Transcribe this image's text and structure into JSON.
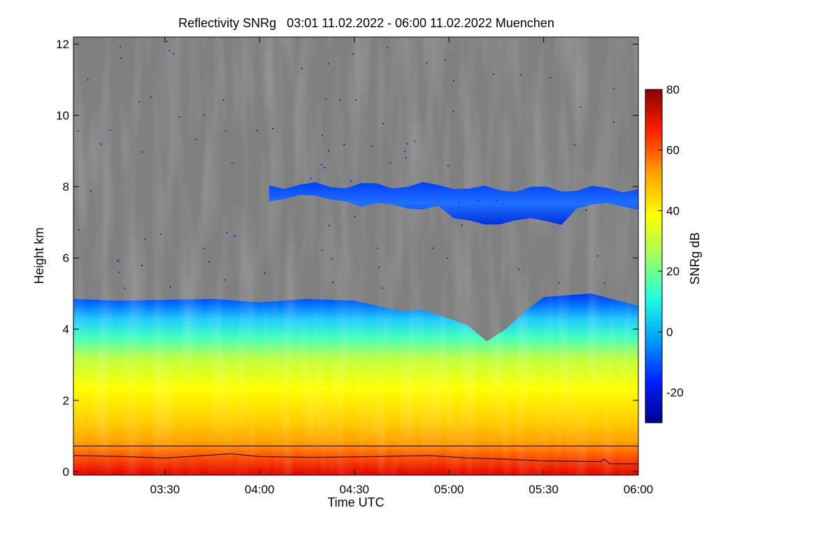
{
  "chart_data": {
    "type": "heatmap",
    "title": "Reflectivity SNRg   03:01 11.02.2022 - 06:00 11.02.2022 Muenchen",
    "xlabel": "Time UTC",
    "ylabel": "Height km",
    "x_range_hours": [
      3.0167,
      6.0
    ],
    "x_ticks": [
      {
        "value": 3.5,
        "label": "03:30"
      },
      {
        "value": 4.0,
        "label": "04:00"
      },
      {
        "value": 4.5,
        "label": "04:30"
      },
      {
        "value": 5.0,
        "label": "05:00"
      },
      {
        "value": 5.5,
        "label": "05:30"
      },
      {
        "value": 6.0,
        "label": "06:00"
      }
    ],
    "ylim": [
      -0.1,
      12.2
    ],
    "y_ticks": [
      {
        "value": 0,
        "label": "0"
      },
      {
        "value": 2,
        "label": "2"
      },
      {
        "value": 4,
        "label": "4"
      },
      {
        "value": 6,
        "label": "6"
      },
      {
        "value": 8,
        "label": "8"
      },
      {
        "value": 10,
        "label": "10"
      },
      {
        "value": 12,
        "label": "12"
      }
    ],
    "no_signal_color": "#808080",
    "colorbar": {
      "label": "SNRg dB",
      "range": [
        -30,
        80
      ],
      "ticks": [
        {
          "value": -20,
          "label": "-20"
        },
        {
          "value": 0,
          "label": "0"
        },
        {
          "value": 20,
          "label": "20"
        },
        {
          "value": 40,
          "label": "40"
        },
        {
          "value": 60,
          "label": "60"
        },
        {
          "value": 80,
          "label": "80"
        }
      ],
      "colors": [
        "#00008f",
        "#0020ff",
        "#00a0ff",
        "#20ffdf",
        "#a0ff60",
        "#ffff00",
        "#ffa000",
        "#ff2000",
        "#8f0000"
      ]
    },
    "cloud_top_profile": [
      {
        "t": 3.02,
        "h": 4.85
      },
      {
        "t": 3.25,
        "h": 4.8
      },
      {
        "t": 3.5,
        "h": 4.82
      },
      {
        "t": 3.75,
        "h": 4.85
      },
      {
        "t": 4.0,
        "h": 4.75
      },
      {
        "t": 4.25,
        "h": 4.85
      },
      {
        "t": 4.5,
        "h": 4.8
      },
      {
        "t": 4.75,
        "h": 4.5
      },
      {
        "t": 4.85,
        "h": 4.55
      },
      {
        "t": 5.0,
        "h": 4.3
      },
      {
        "t": 5.1,
        "h": 4.1
      },
      {
        "t": 5.2,
        "h": 3.65
      },
      {
        "t": 5.3,
        "h": 4.0
      },
      {
        "t": 5.4,
        "h": 4.5
      },
      {
        "t": 5.5,
        "h": 4.9
      },
      {
        "t": 5.75,
        "h": 5.0
      },
      {
        "t": 6.0,
        "h": 4.65
      }
    ],
    "upper_cloud_layer": {
      "t_start": 4.05,
      "t_end": 6.0,
      "h_bottom": 6.9,
      "h_top": 8.15
    },
    "reference_line_km": 0.72,
    "boundary_layer_height": [
      {
        "t": 3.02,
        "h": 0.45
      },
      {
        "t": 3.3,
        "h": 0.42
      },
      {
        "t": 3.5,
        "h": 0.38
      },
      {
        "t": 3.85,
        "h": 0.5
      },
      {
        "t": 4.0,
        "h": 0.42
      },
      {
        "t": 4.3,
        "h": 0.4
      },
      {
        "t": 4.6,
        "h": 0.42
      },
      {
        "t": 4.9,
        "h": 0.45
      },
      {
        "t": 5.1,
        "h": 0.38
      },
      {
        "t": 5.3,
        "h": 0.35
      },
      {
        "t": 5.5,
        "h": 0.3
      },
      {
        "t": 5.8,
        "h": 0.28
      },
      {
        "t": 5.82,
        "h": 0.35
      },
      {
        "t": 5.85,
        "h": 0.22
      },
      {
        "t": 6.0,
        "h": 0.22
      }
    ]
  }
}
